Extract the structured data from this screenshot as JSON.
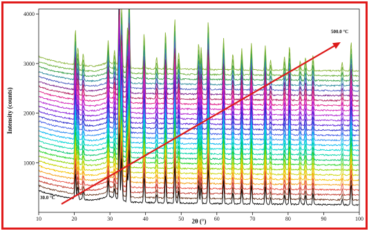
{
  "chart_data": {
    "type": "line",
    "xlabel": "2θ (°)",
    "ylabel": "Intensity (counts)",
    "xlim": [
      10,
      100
    ],
    "ylim": [
      0,
      4100
    ],
    "x_ticks": [
      "10",
      "20",
      "30",
      "40",
      "50",
      "60",
      "70",
      "80",
      "90",
      "100"
    ],
    "y_ticks": [
      "1000",
      "2000",
      "3000",
      "4000"
    ],
    "grid": false,
    "legend": "none",
    "series_count": 28,
    "start_annotation": "30.0 °C",
    "end_annotation": "500.0 °C",
    "arrow_color": "#dd1a1a",
    "frame_color": "#e01a1a",
    "first_series_baseline": 150,
    "series_baseline_step": 100,
    "baseline_slope": "decreasing with 2θ",
    "peaks": [
      {
        "x": 20.3,
        "h": 520
      },
      {
        "x": 21.0,
        "h": 260
      },
      {
        "x": 22.5,
        "h": 170
      },
      {
        "x": 29.5,
        "h": 330
      },
      {
        "x": 31.3,
        "h": 190
      },
      {
        "x": 32.6,
        "h": 1400
      },
      {
        "x": 33.3,
        "h": 900
      },
      {
        "x": 34.9,
        "h": 560
      },
      {
        "x": 35.4,
        "h": 1100
      },
      {
        "x": 39.6,
        "h": 520
      },
      {
        "x": 43.1,
        "h": 170
      },
      {
        "x": 45.6,
        "h": 560
      },
      {
        "x": 48.2,
        "h": 740
      },
      {
        "x": 49.3,
        "h": 230
      },
      {
        "x": 54.9,
        "h": 380
      },
      {
        "x": 55.6,
        "h": 320
      },
      {
        "x": 57.6,
        "h": 720
      },
      {
        "x": 61.9,
        "h": 460
      },
      {
        "x": 64.5,
        "h": 230
      },
      {
        "x": 67.0,
        "h": 300
      },
      {
        "x": 69.7,
        "h": 380
      },
      {
        "x": 73.6,
        "h": 360
      },
      {
        "x": 75.1,
        "h": 140
      },
      {
        "x": 79.0,
        "h": 190
      },
      {
        "x": 80.4,
        "h": 350
      },
      {
        "x": 83.4,
        "h": 140
      },
      {
        "x": 84.9,
        "h": 190
      },
      {
        "x": 87.0,
        "h": 230
      },
      {
        "x": 95.2,
        "h": 120
      },
      {
        "x": 97.7,
        "h": 420
      }
    ],
    "series_colors": [
      "#000000",
      "#6b3a22",
      "#c0392b",
      "#e74c3c",
      "#f39c12",
      "#f5c200",
      "#c9d400",
      "#8bd400",
      "#28d428",
      "#00c46a",
      "#00d4a8",
      "#00d4d4",
      "#00b4f0",
      "#2f8df0",
      "#3b55e6",
      "#2a2acb",
      "#5a1ed8",
      "#8a1ed8",
      "#b01ed0",
      "#d01eb8",
      "#e0208a",
      "#b02060",
      "#7a1e8a",
      "#4a5abf",
      "#2a8a9a",
      "#3aa04a",
      "#6ab03a",
      "#8ab43a"
    ]
  }
}
